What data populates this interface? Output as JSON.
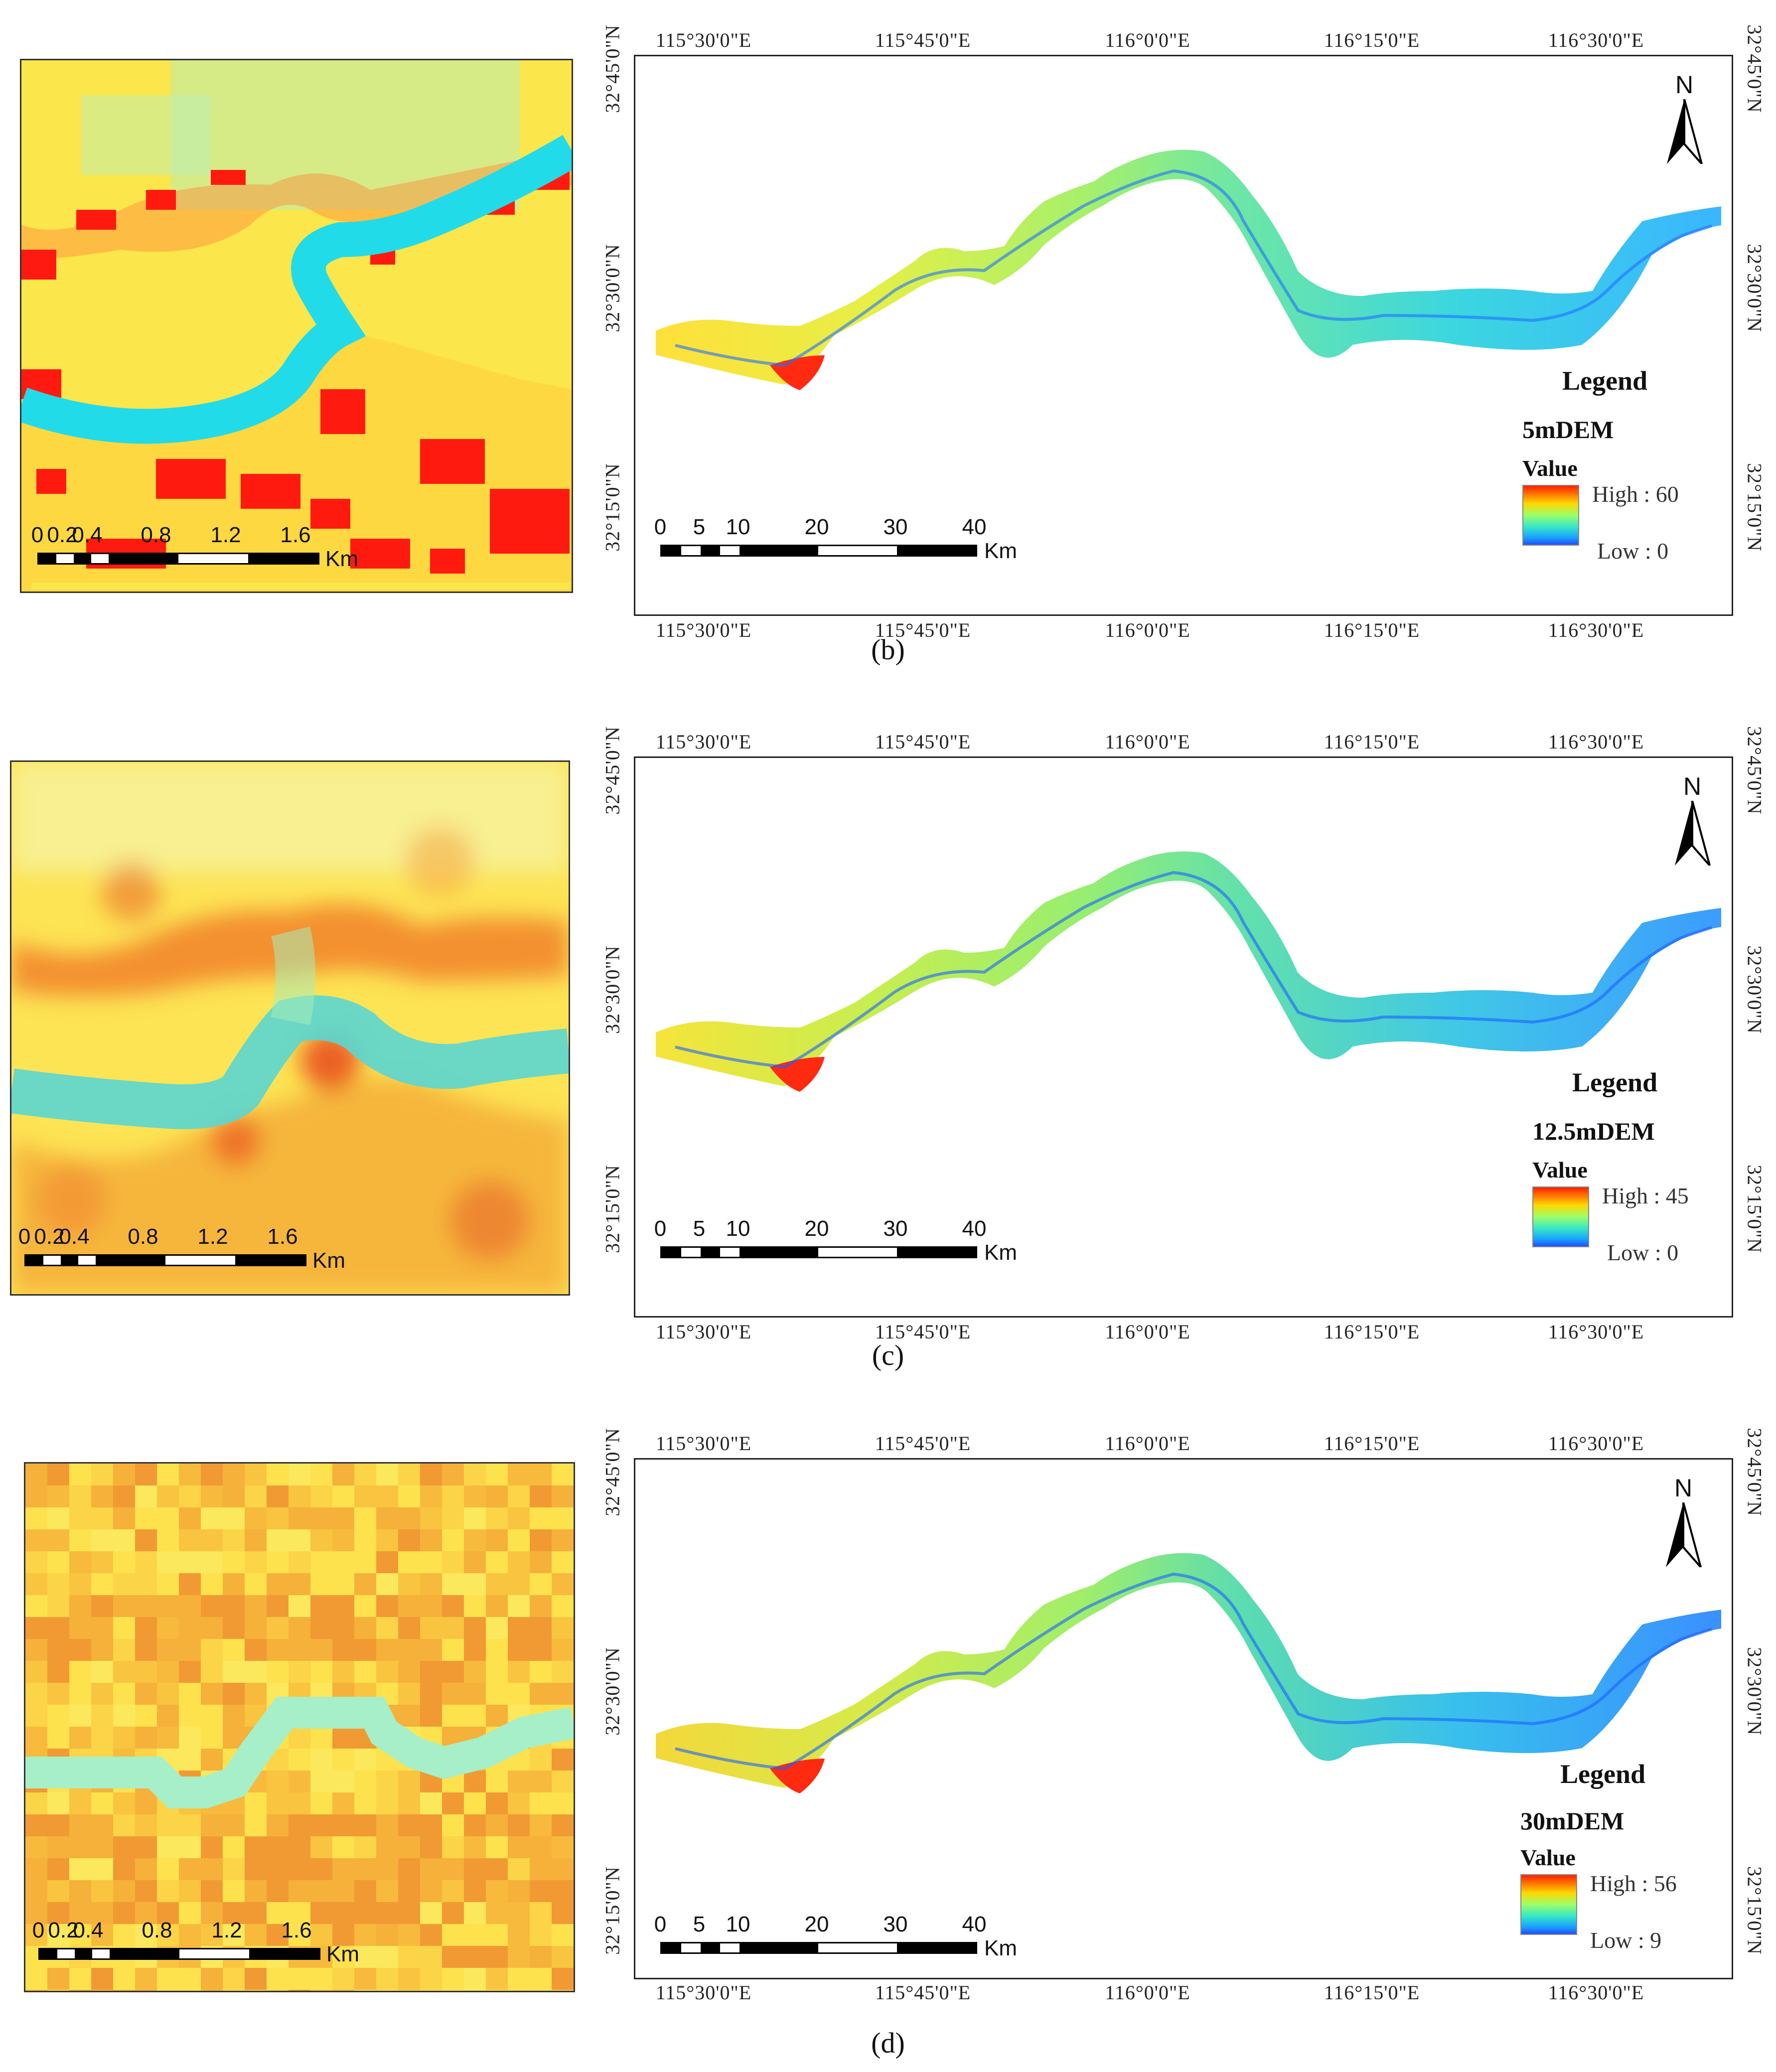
{
  "lon_labels": [
    "115°30'0\"E",
    "115°45'0\"E",
    "116°0'0\"E",
    "116°15'0\"E",
    "116°30'0\"E"
  ],
  "lat_labels": [
    "32°45'0\"N",
    "32°30'0\"N",
    "32°15'0\"N"
  ],
  "map_scale": {
    "ticks": [
      "0",
      "5",
      "10",
      "20",
      "30",
      "40"
    ],
    "unit": "Km"
  },
  "zoom_scale": {
    "ticks": [
      "0",
      "0.2",
      "0.4",
      "0.8",
      "1.2",
      "1.6"
    ],
    "unit": "Km"
  },
  "north_label": "N",
  "legend_title": "Legend",
  "legend_value_label": "Value",
  "panels": [
    {
      "id": "b",
      "caption": "(b)",
      "dataset": "5mDEM",
      "high_label": "High : 60",
      "low_label": "Low : 0",
      "high": 60,
      "low": 0
    },
    {
      "id": "c",
      "caption": "(c)",
      "dataset": "12.5mDEM",
      "high_label": "High : 45",
      "low_label": "Low : 0",
      "high": 45,
      "low": 0
    },
    {
      "id": "d",
      "caption": "(d)",
      "dataset": "30mDEM",
      "high_label": "High : 56",
      "low_label": "Low : 9",
      "high": 56,
      "low": 9
    }
  ],
  "colors": {
    "high": "#ff2000",
    "mid": "#ffe600",
    "low": "#2050ff",
    "river": "#22dbe8",
    "frame": "#222222"
  }
}
